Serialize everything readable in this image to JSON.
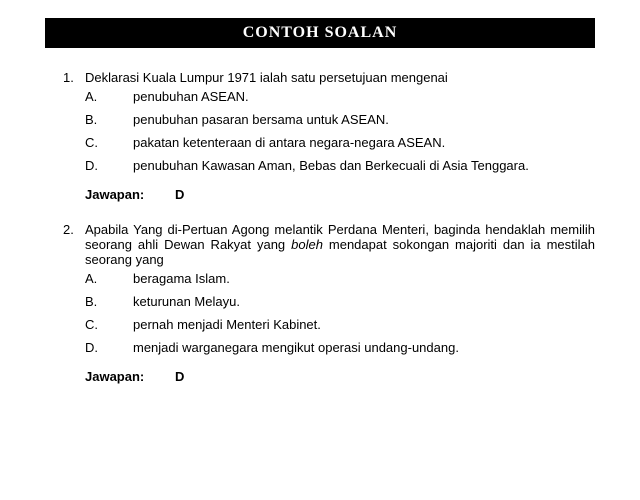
{
  "title": "CONTOH SOALAN",
  "questions": [
    {
      "number": "1.",
      "text": "Deklarasi Kuala Lumpur 1971 ialah satu persetujuan mengenai",
      "justify": false,
      "options": [
        {
          "letter": "A.",
          "text": "penubuhan ASEAN."
        },
        {
          "letter": "B.",
          "text": "penubuhan pasaran bersama untuk ASEAN."
        },
        {
          "letter": "C.",
          "text": "pakatan ketenteraan di antara negara-negara ASEAN."
        },
        {
          "letter": "D.",
          "text": "penubuhan Kawasan Aman, Bebas dan Berkecuali di Asia Tenggara."
        }
      ],
      "answerLabel": "Jawapan:",
      "answer": "D"
    },
    {
      "number": "2.",
      "text_parts": [
        "Apabila Yang di-Pertuan Agong melantik Perdana Menteri, baginda hendaklah memilih seorang ahli Dewan Rakyat yang ",
        "boleh",
        " mendapat sokongan majoriti dan ia mestilah seorang yang"
      ],
      "justify": true,
      "options": [
        {
          "letter": "A.",
          "text": "beragama Islam."
        },
        {
          "letter": "B.",
          "text": "keturunan Melayu."
        },
        {
          "letter": "C.",
          "text": "pernah menjadi Menteri Kabinet."
        },
        {
          "letter": "D.",
          "text": "menjadi warganegara mengikut operasi undang-undang."
        }
      ],
      "answerLabel": "Jawapan:",
      "answer": "D"
    }
  ]
}
